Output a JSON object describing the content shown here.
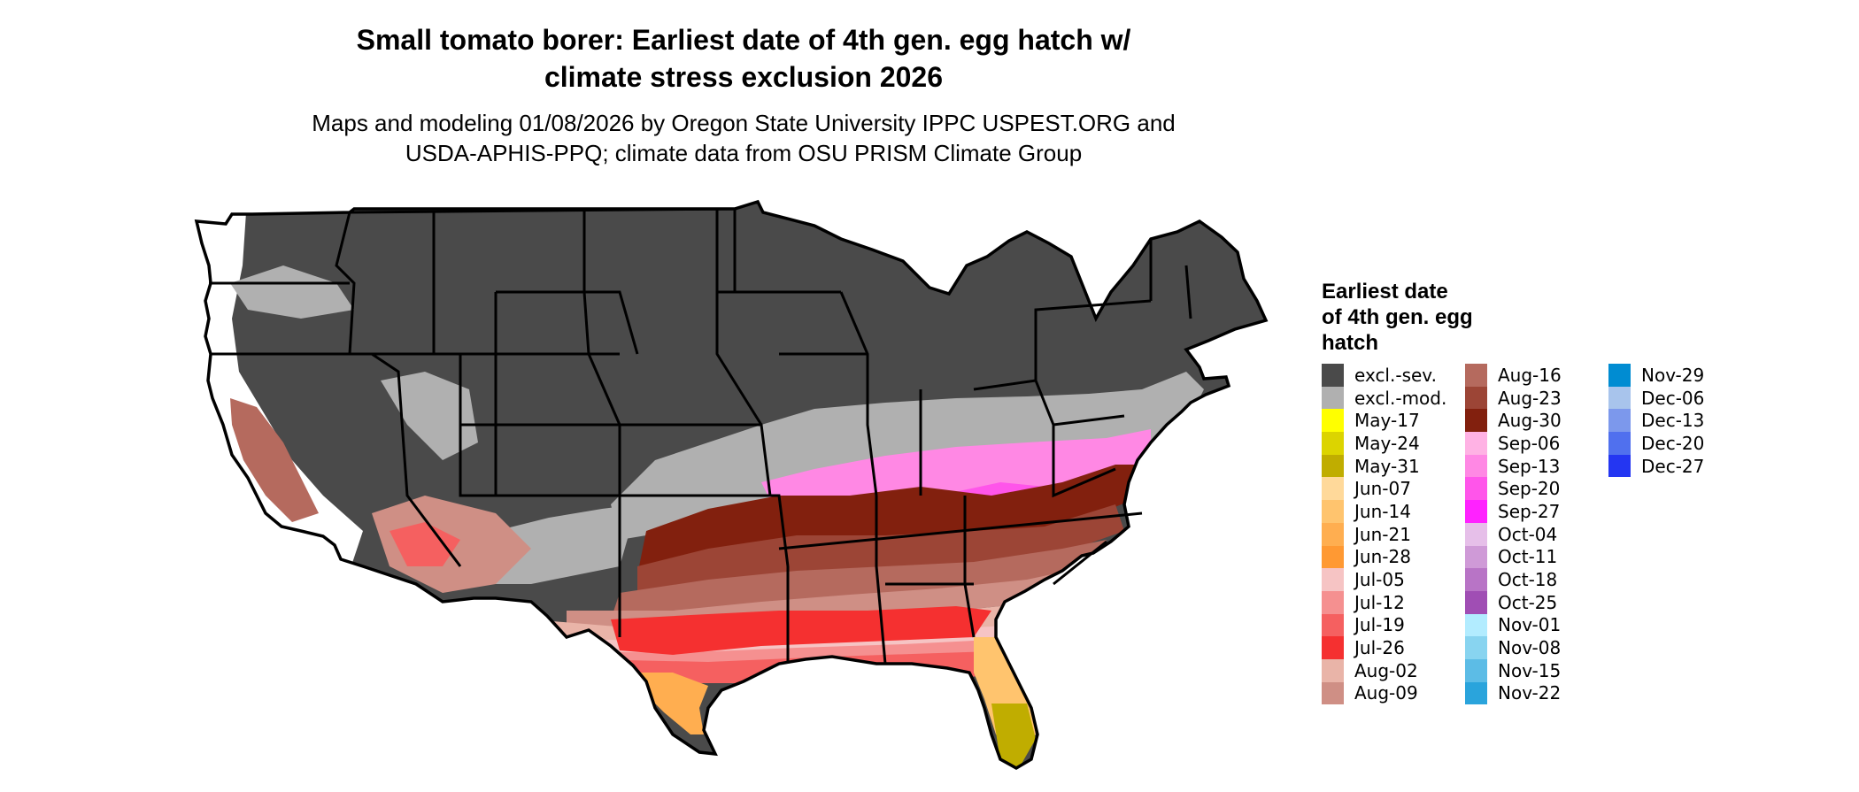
{
  "title_line1": "Small tomato borer: Earliest date of 4th gen. egg hatch w/",
  "title_line2": "climate stress exclusion 2026",
  "subtitle_line1": "Maps and modeling 01/08/2026 by Oregon State University IPPC USPEST.ORG and",
  "subtitle_line2": "USDA-APHIS-PPQ; climate data from OSU PRISM Climate Group",
  "legend": {
    "title_lines": [
      "Earliest date",
      "of 4th gen. egg",
      "hatch"
    ],
    "columns": [
      [
        {
          "label": "excl.-sev.",
          "color": "#4a4a4a"
        },
        {
          "label": "excl.-mod.",
          "color": "#b0b0b0"
        },
        {
          "label": "May-17",
          "color": "#ffff00"
        },
        {
          "label": "May-24",
          "color": "#dcd400"
        },
        {
          "label": "May-31",
          "color": "#c0ad00"
        },
        {
          "label": "Jun-07",
          "color": "#ffd99a"
        },
        {
          "label": "Jun-14",
          "color": "#ffc46e"
        },
        {
          "label": "Jun-21",
          "color": "#ffae50"
        },
        {
          "label": "Jun-28",
          "color": "#ff9933"
        },
        {
          "label": "Jul-05",
          "color": "#f6c4c4"
        },
        {
          "label": "Jul-12",
          "color": "#f59090"
        },
        {
          "label": "Jul-19",
          "color": "#f56060"
        },
        {
          "label": "Jul-26",
          "color": "#f53030"
        },
        {
          "label": "Aug-02",
          "color": "#e9b4a8"
        },
        {
          "label": "Aug-09",
          "color": "#cf8f85"
        }
      ],
      [
        {
          "label": "Aug-16",
          "color": "#b56a5e"
        },
        {
          "label": "Aug-23",
          "color": "#9c4536"
        },
        {
          "label": "Aug-30",
          "color": "#82200e"
        },
        {
          "label": "Sep-06",
          "color": "#ffb2e4"
        },
        {
          "label": "Sep-13",
          "color": "#ff88e4"
        },
        {
          "label": "Sep-20",
          "color": "#ff55ea"
        },
        {
          "label": "Sep-27",
          "color": "#ff22ff"
        },
        {
          "label": "Oct-04",
          "color": "#e6bfe9"
        },
        {
          "label": "Oct-11",
          "color": "#cf9ad7"
        },
        {
          "label": "Oct-18",
          "color": "#b874c6"
        },
        {
          "label": "Oct-25",
          "color": "#a04eb4"
        },
        {
          "label": "Nov-01",
          "color": "#b2ecff"
        },
        {
          "label": "Nov-08",
          "color": "#88d4f0"
        },
        {
          "label": "Nov-15",
          "color": "#5cbce6"
        },
        {
          "label": "Nov-22",
          "color": "#2aa4dc"
        }
      ],
      [
        {
          "label": "Nov-29",
          "color": "#008cd2"
        },
        {
          "label": "Dec-06",
          "color": "#a8c4ec"
        },
        {
          "label": "Dec-13",
          "color": "#7c98ec"
        },
        {
          "label": "Dec-20",
          "color": "#5070ee"
        },
        {
          "label": "Dec-27",
          "color": "#2436f2"
        }
      ]
    ]
  }
}
